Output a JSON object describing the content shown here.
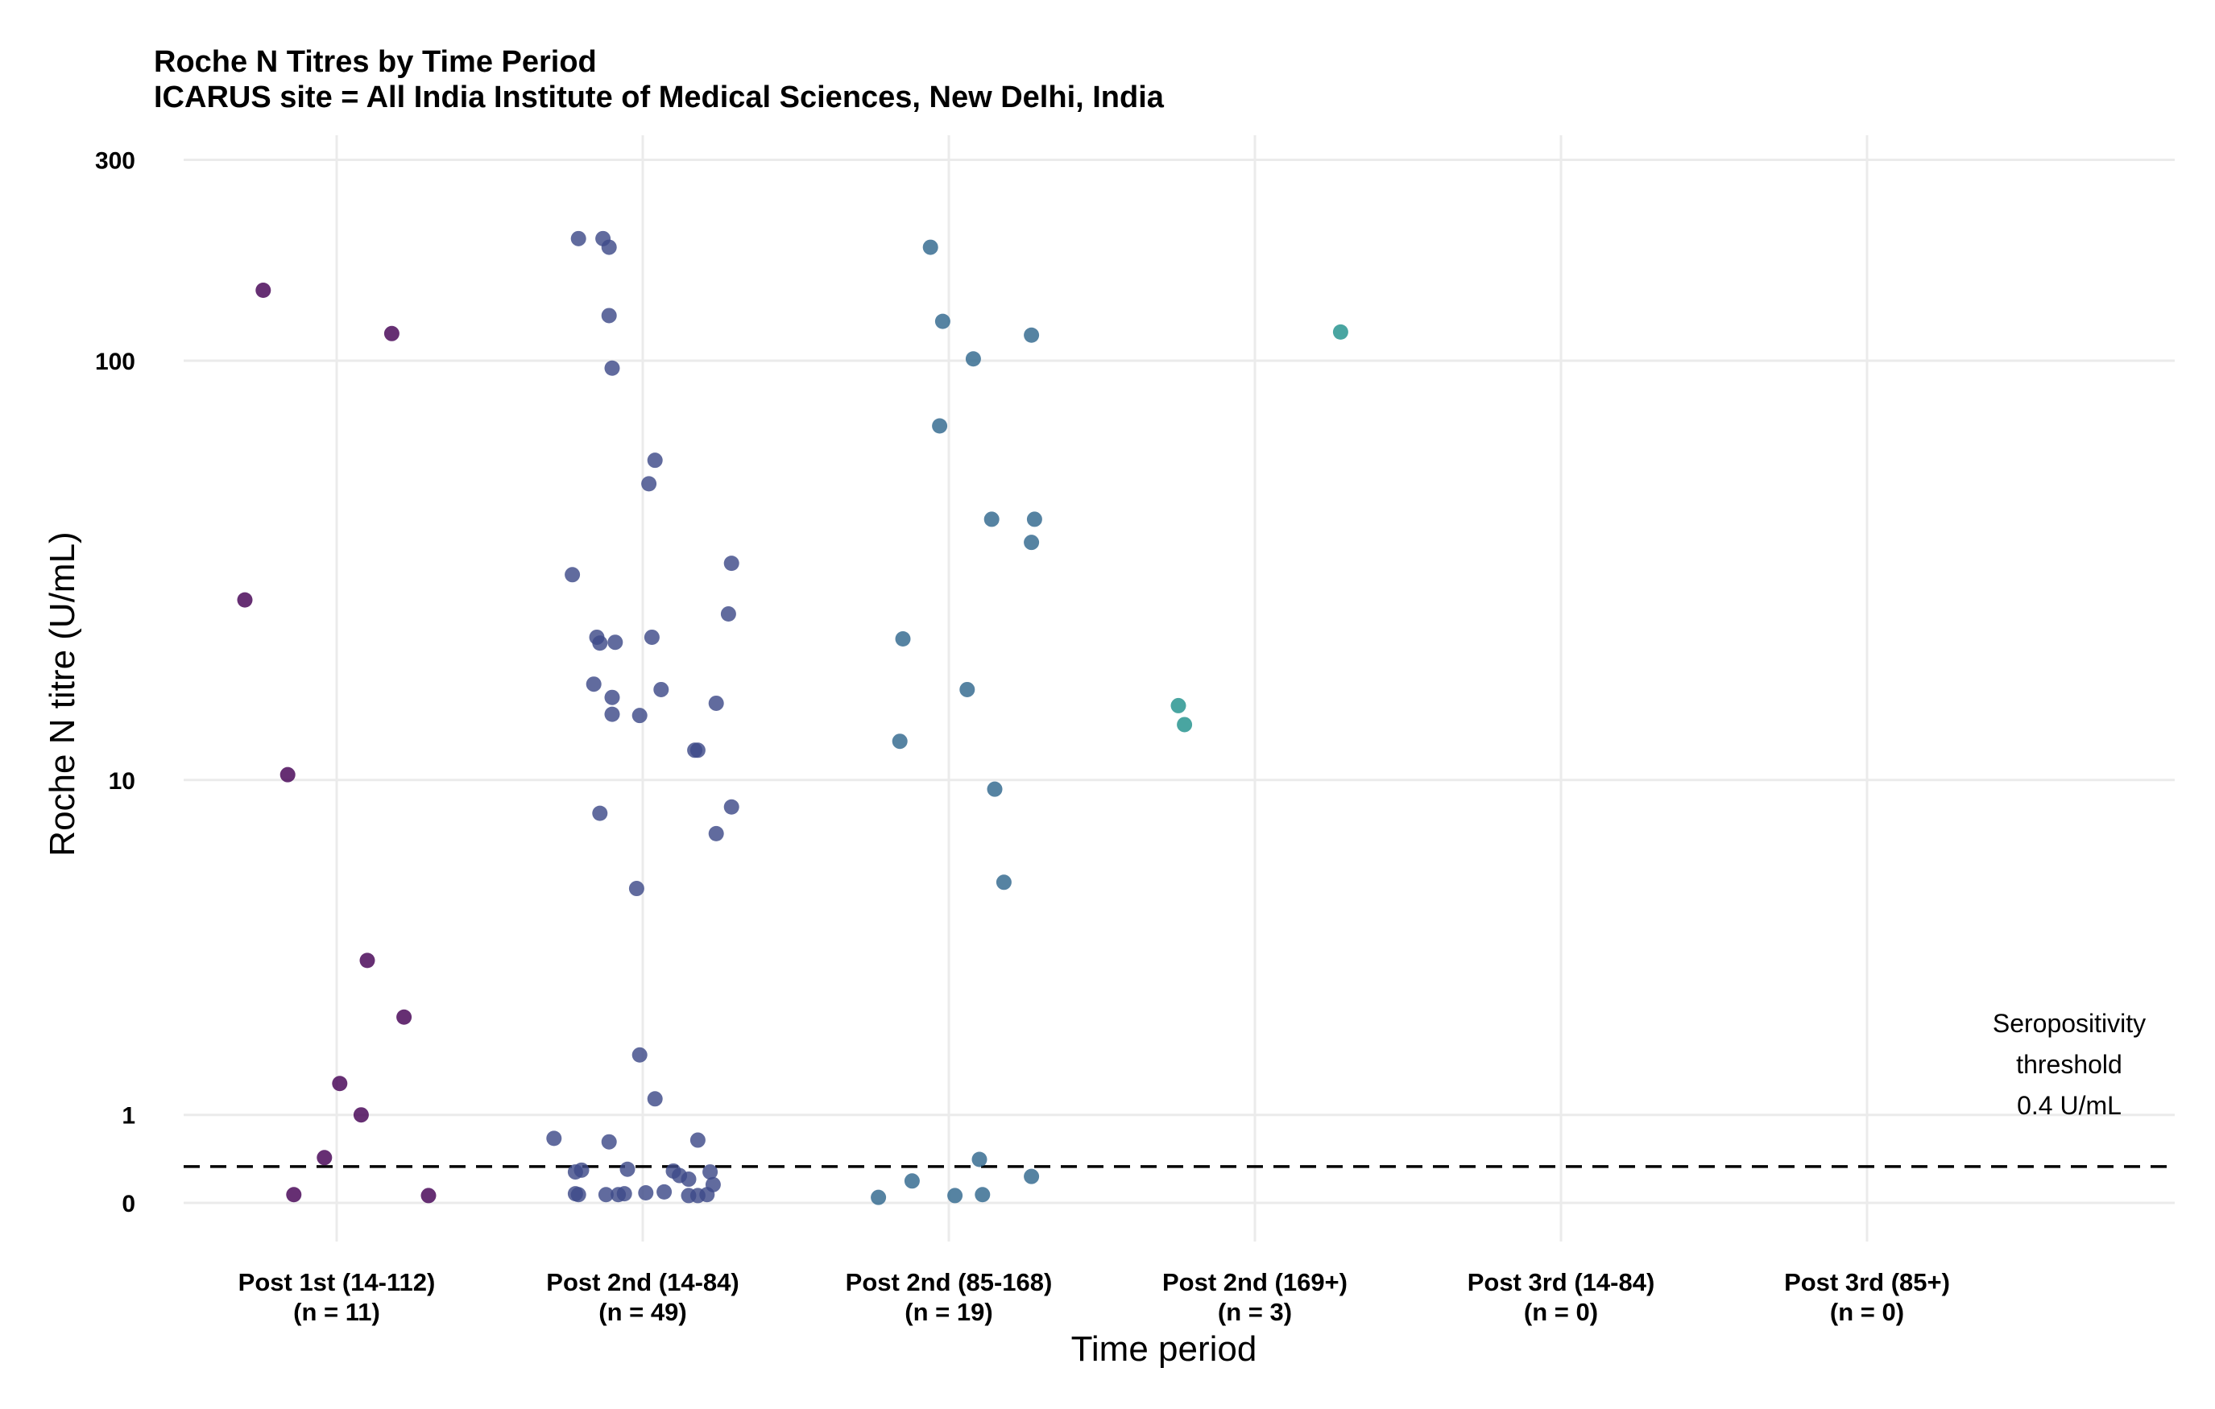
{
  "chart_data": {
    "type": "scatter",
    "title": "Roche N Titres by Time Period",
    "subtitle": "ICARUS site = All India Institute of Medical Sciences, New Delhi, India",
    "xlabel": "Time period",
    "ylabel": "Roche N titre (U/mL)",
    "y_scale": "pseudo-log",
    "y_ticks": [
      {
        "label": "0",
        "value": 0
      },
      {
        "label": "1",
        "value": 1
      },
      {
        "label": "10",
        "value": 10
      },
      {
        "label": "100",
        "value": 100
      },
      {
        "label": "300",
        "value": 300
      }
    ],
    "categories": [
      {
        "name": "Post 1st (14-112)",
        "n": "(n = 11)"
      },
      {
        "name": "Post 2nd (14-84)",
        "n": "(n = 49)"
      },
      {
        "name": "Post 2nd (85-168)",
        "n": "(n = 19)"
      },
      {
        "name": "Post 2nd (169+)",
        "n": "(n = 3)"
      },
      {
        "name": "Post 3rd (14-84)",
        "n": "(n = 0)"
      },
      {
        "name": "Post 3rd (85+)",
        "n": "(n = 0)"
      }
    ],
    "threshold": {
      "value": 0.4,
      "lines": [
        "Seropositivity",
        "threshold",
        "0.4 U/mL"
      ]
    },
    "series": [
      {
        "name": "Post 1st (14-112)",
        "color": "#440154",
        "points": [
          {
            "x": -0.24,
            "y": 147
          },
          {
            "x": 0.18,
            "y": 116
          },
          {
            "x": -0.3,
            "y": 27
          },
          {
            "x": -0.16,
            "y": 10.3
          },
          {
            "x": 0.1,
            "y": 3.5
          },
          {
            "x": 0.22,
            "y": 2.4
          },
          {
            "x": 0.01,
            "y": 1.4
          },
          {
            "x": 0.08,
            "y": 1.0
          },
          {
            "x": -0.04,
            "y": 0.5
          },
          {
            "x": -0.14,
            "y": 0.09
          },
          {
            "x": 0.3,
            "y": 0.08
          }
        ]
      },
      {
        "name": "Post 2nd (14-84)",
        "color": "#3E4A89",
        "points": [
          {
            "x": -0.21,
            "y": 195
          },
          {
            "x": -0.13,
            "y": 195
          },
          {
            "x": -0.11,
            "y": 186
          },
          {
            "x": -0.11,
            "y": 128
          },
          {
            "x": -0.1,
            "y": 96
          },
          {
            "x": 0.04,
            "y": 58
          },
          {
            "x": 0.02,
            "y": 51
          },
          {
            "x": -0.23,
            "y": 31
          },
          {
            "x": 0.29,
            "y": 33
          },
          {
            "x": 0.28,
            "y": 25
          },
          {
            "x": -0.15,
            "y": 22
          },
          {
            "x": 0.03,
            "y": 22
          },
          {
            "x": -0.14,
            "y": 21.3
          },
          {
            "x": -0.09,
            "y": 21.4
          },
          {
            "x": -0.16,
            "y": 17
          },
          {
            "x": 0.06,
            "y": 16.5
          },
          {
            "x": -0.1,
            "y": 15.8
          },
          {
            "x": 0.24,
            "y": 15.3
          },
          {
            "x": -0.1,
            "y": 14.4
          },
          {
            "x": -0.01,
            "y": 14.3
          },
          {
            "x": 0.17,
            "y": 11.8
          },
          {
            "x": 0.18,
            "y": 11.8
          },
          {
            "x": 0.29,
            "y": 8.6
          },
          {
            "x": -0.14,
            "y": 8.3
          },
          {
            "x": 0.24,
            "y": 7.4
          },
          {
            "x": -0.02,
            "y": 5.4
          },
          {
            "x": -0.01,
            "y": 1.8
          },
          {
            "x": 0.04,
            "y": 1.2
          },
          {
            "x": -0.29,
            "y": 0.72
          },
          {
            "x": -0.11,
            "y": 0.68
          },
          {
            "x": 0.18,
            "y": 0.7
          },
          {
            "x": -0.2,
            "y": 0.36
          },
          {
            "x": -0.22,
            "y": 0.34
          },
          {
            "x": -0.05,
            "y": 0.37
          },
          {
            "x": 0.1,
            "y": 0.35
          },
          {
            "x": 0.22,
            "y": 0.34
          },
          {
            "x": 0.12,
            "y": 0.3
          },
          {
            "x": 0.15,
            "y": 0.26
          },
          {
            "x": 0.23,
            "y": 0.2
          },
          {
            "x": -0.22,
            "y": 0.1
          },
          {
            "x": -0.21,
            "y": 0.09
          },
          {
            "x": -0.12,
            "y": 0.09
          },
          {
            "x": -0.08,
            "y": 0.09
          },
          {
            "x": -0.06,
            "y": 0.1
          },
          {
            "x": 0.01,
            "y": 0.11
          },
          {
            "x": 0.07,
            "y": 0.12
          },
          {
            "x": 0.15,
            "y": 0.08
          },
          {
            "x": 0.18,
            "y": 0.08
          },
          {
            "x": 0.21,
            "y": 0.09
          }
        ]
      },
      {
        "name": "Post 2nd (85-168)",
        "color": "#31688E",
        "points": [
          {
            "x": -0.06,
            "y": 186
          },
          {
            "x": -0.02,
            "y": 124
          },
          {
            "x": 0.27,
            "y": 115
          },
          {
            "x": 0.08,
            "y": 101
          },
          {
            "x": -0.03,
            "y": 70
          },
          {
            "x": 0.14,
            "y": 42
          },
          {
            "x": 0.28,
            "y": 42
          },
          {
            "x": 0.27,
            "y": 37
          },
          {
            "x": -0.15,
            "y": 21.8
          },
          {
            "x": 0.06,
            "y": 16.5
          },
          {
            "x": -0.16,
            "y": 12.4
          },
          {
            "x": 0.15,
            "y": 9.5
          },
          {
            "x": 0.18,
            "y": 5.6
          },
          {
            "x": 0.1,
            "y": 0.48
          },
          {
            "x": 0.27,
            "y": 0.29
          },
          {
            "x": -0.12,
            "y": 0.24
          },
          {
            "x": 0.02,
            "y": 0.08
          },
          {
            "x": 0.11,
            "y": 0.09
          },
          {
            "x": -0.23,
            "y": 0.06
          }
        ]
      },
      {
        "name": "Post 2nd (169+)",
        "color": "#21918C",
        "points": [
          {
            "x": 0.28,
            "y": 117
          },
          {
            "x": -0.25,
            "y": 15.1
          },
          {
            "x": -0.23,
            "y": 13.6
          }
        ]
      }
    ]
  }
}
